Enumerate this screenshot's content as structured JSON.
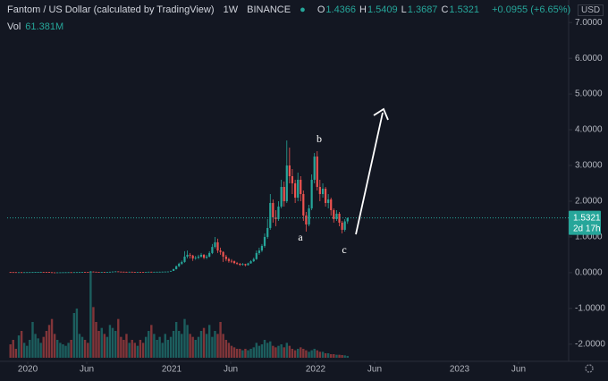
{
  "chart_data": {
    "type": "candlestick",
    "title": "Fantom / US Dollar (calculated by TradingView)",
    "interval": "1W",
    "exchange": "BINANCE",
    "currency": "USD",
    "legend": [
      {
        "label": "O",
        "value": 1.4366
      },
      {
        "label": "H",
        "value": 1.5409
      },
      {
        "label": "L",
        "value": 1.3687
      },
      {
        "label": "C",
        "value": 1.5321
      }
    ],
    "change_label": "+0.0955 (+6.65%)",
    "volume_legend": {
      "label": "Vol",
      "value": 61.381,
      "value_label": "61.381M"
    },
    "last_price": {
      "value": 1.5321,
      "countdown": "2d 17h"
    },
    "annotations": [
      "a",
      "b",
      "c"
    ],
    "up_color": "#26a69a",
    "down_color": "#ef5350",
    "volume_opacity": 0.5,
    "grid": false,
    "xlim": [
      2019.857,
      2023.758
    ],
    "ylim": [
      -2.38,
      7.38
    ],
    "vlim": [
      0,
      3900
    ],
    "xticks": [
      {
        "value": 2020.0,
        "label": "2020"
      },
      {
        "value": 2020.41,
        "label": "Jun"
      },
      {
        "value": 2021.0,
        "label": "2021"
      },
      {
        "value": 2021.41,
        "label": "Jun"
      },
      {
        "value": 2022.0,
        "label": "2022"
      },
      {
        "value": 2022.41,
        "label": "Jun"
      },
      {
        "value": 2023.0,
        "label": "2023"
      },
      {
        "value": 2023.41,
        "label": "Jun"
      }
    ],
    "yticks": [
      {
        "value": 7,
        "label": "7.0000"
      },
      {
        "value": 6,
        "label": "6.0000"
      },
      {
        "value": 5,
        "label": "5.0000"
      },
      {
        "value": 4,
        "label": "4.0000"
      },
      {
        "value": 3,
        "label": "3.0000"
      },
      {
        "value": 2,
        "label": "2.0000"
      },
      {
        "value": 1,
        "label": "1.0000"
      },
      {
        "value": 0,
        "label": "0.0000"
      },
      {
        "value": -1,
        "label": "-1.0000"
      },
      {
        "value": -2,
        "label": "-2.0000"
      }
    ],
    "x": [
      2019.88,
      2019.899,
      2019.918,
      2019.938,
      2019.957,
      2019.976,
      2019.995,
      2020.014,
      2020.034,
      2020.053,
      2020.072,
      2020.091,
      2020.11,
      2020.13,
      2020.149,
      2020.168,
      2020.187,
      2020.206,
      2020.226,
      2020.245,
      2020.264,
      2020.283,
      2020.302,
      2020.322,
      2020.341,
      2020.36,
      2020.379,
      2020.398,
      2020.418,
      2020.437,
      2020.456,
      2020.475,
      2020.494,
      2020.514,
      2020.533,
      2020.552,
      2020.571,
      2020.59,
      2020.61,
      2020.629,
      2020.648,
      2020.667,
      2020.686,
      2020.706,
      2020.725,
      2020.744,
      2020.763,
      2020.782,
      2020.802,
      2020.821,
      2020.84,
      2020.859,
      2020.878,
      2020.898,
      2020.917,
      2020.936,
      2020.955,
      2020.974,
      2020.994,
      2021.013,
      2021.032,
      2021.051,
      2021.07,
      2021.09,
      2021.109,
      2021.128,
      2021.147,
      2021.166,
      2021.186,
      2021.205,
      2021.224,
      2021.243,
      2021.262,
      2021.282,
      2021.301,
      2021.32,
      2021.339,
      2021.358,
      2021.378,
      2021.397,
      2021.416,
      2021.435,
      2021.454,
      2021.474,
      2021.493,
      2021.512,
      2021.531,
      2021.55,
      2021.57,
      2021.589,
      2021.608,
      2021.627,
      2021.646,
      2021.666,
      2021.685,
      2021.704,
      2021.723,
      2021.742,
      2021.762,
      2021.781,
      2021.8,
      2021.819,
      2021.838,
      2021.858,
      2021.877,
      2021.896,
      2021.915,
      2021.934,
      2021.954,
      2021.973,
      2021.992,
      2022.011,
      2022.03,
      2022.05,
      2022.069,
      2022.088,
      2022.107,
      2022.126,
      2022.146,
      2022.165,
      2022.184,
      2022.203,
      2022.222
    ],
    "open": [
      0.016,
      0.015,
      0.014,
      0.013,
      0.013,
      0.012,
      0.013,
      0.014,
      0.015,
      0.016,
      0.018,
      0.02,
      0.022,
      0.02,
      0.018,
      0.012,
      0.008,
      0.007,
      0.009,
      0.01,
      0.011,
      0.012,
      0.013,
      0.012,
      0.014,
      0.015,
      0.016,
      0.018,
      0.017,
      0.016,
      0.03,
      0.025,
      0.022,
      0.02,
      0.021,
      0.019,
      0.02,
      0.025,
      0.03,
      0.035,
      0.028,
      0.026,
      0.024,
      0.023,
      0.025,
      0.022,
      0.02,
      0.021,
      0.02,
      0.019,
      0.022,
      0.025,
      0.023,
      0.024,
      0.025,
      0.026,
      0.028,
      0.03,
      0.032,
      0.05,
      0.1,
      0.18,
      0.25,
      0.3,
      0.45,
      0.5,
      0.48,
      0.4,
      0.42,
      0.45,
      0.5,
      0.42,
      0.45,
      0.55,
      0.72,
      0.85,
      0.62,
      0.58,
      0.45,
      0.38,
      0.33,
      0.32,
      0.27,
      0.25,
      0.22,
      0.24,
      0.21,
      0.26,
      0.32,
      0.38,
      0.55,
      0.62,
      0.75,
      1.0,
      1.25,
      1.95,
      1.55,
      1.5,
      1.85,
      2.4,
      2.0,
      3.0,
      2.7,
      2.5,
      2.1,
      2.6,
      2.2,
      1.6,
      1.35,
      1.8,
      2.6,
      3.25,
      2.4,
      2.2,
      2.35,
      1.95,
      2.05,
      1.75,
      1.5,
      1.65,
      1.4,
      1.2,
      1.4366
    ],
    "high": [
      0.018,
      0.017,
      0.015,
      0.014,
      0.014,
      0.014,
      0.015,
      0.016,
      0.017,
      0.02,
      0.022,
      0.025,
      0.023,
      0.021,
      0.019,
      0.013,
      0.009,
      0.01,
      0.011,
      0.012,
      0.013,
      0.014,
      0.014,
      0.015,
      0.016,
      0.017,
      0.02,
      0.019,
      0.018,
      0.038,
      0.033,
      0.026,
      0.023,
      0.022,
      0.022,
      0.021,
      0.027,
      0.033,
      0.04,
      0.036,
      0.029,
      0.027,
      0.025,
      0.026,
      0.026,
      0.023,
      0.022,
      0.022,
      0.021,
      0.023,
      0.027,
      0.026,
      0.025,
      0.026,
      0.028,
      0.03,
      0.032,
      0.035,
      0.055,
      0.11,
      0.2,
      0.28,
      0.34,
      0.6,
      0.62,
      0.55,
      0.5,
      0.47,
      0.5,
      0.55,
      0.52,
      0.5,
      0.6,
      0.8,
      1.0,
      0.95,
      0.7,
      0.6,
      0.5,
      0.42,
      0.38,
      0.34,
      0.3,
      0.27,
      0.27,
      0.25,
      0.28,
      0.35,
      0.42,
      0.62,
      0.7,
      0.8,
      1.1,
      1.5,
      2.2,
      2.05,
      1.75,
      2.0,
      2.6,
      2.55,
      3.7,
      3.5,
      2.9,
      2.6,
      2.8,
      2.7,
      2.3,
      1.7,
      1.9,
      2.75,
      3.35,
      3.4,
      2.6,
      2.5,
      2.4,
      2.2,
      2.1,
      1.8,
      1.75,
      1.7,
      1.45,
      1.5,
      1.5409
    ],
    "low": [
      0.014,
      0.013,
      0.012,
      0.012,
      0.011,
      0.011,
      0.012,
      0.013,
      0.014,
      0.015,
      0.017,
      0.019,
      0.019,
      0.017,
      0.011,
      0.006,
      0.005,
      0.006,
      0.008,
      0.009,
      0.01,
      0.011,
      0.011,
      0.011,
      0.013,
      0.014,
      0.015,
      0.016,
      0.015,
      0.015,
      0.023,
      0.02,
      0.019,
      0.019,
      0.018,
      0.018,
      0.019,
      0.024,
      0.028,
      0.026,
      0.024,
      0.022,
      0.021,
      0.022,
      0.02,
      0.018,
      0.019,
      0.019,
      0.018,
      0.018,
      0.021,
      0.022,
      0.022,
      0.023,
      0.024,
      0.025,
      0.027,
      0.029,
      0.03,
      0.048,
      0.09,
      0.16,
      0.22,
      0.28,
      0.4,
      0.4,
      0.33,
      0.36,
      0.38,
      0.42,
      0.38,
      0.38,
      0.43,
      0.52,
      0.68,
      0.55,
      0.5,
      0.3,
      0.32,
      0.28,
      0.27,
      0.24,
      0.22,
      0.19,
      0.2,
      0.18,
      0.2,
      0.25,
      0.3,
      0.36,
      0.5,
      0.58,
      0.7,
      0.95,
      1.2,
      1.4,
      1.3,
      1.45,
      1.8,
      1.85,
      1.95,
      2.5,
      2.2,
      1.95,
      2.0,
      2.0,
      1.45,
      1.15,
      1.3,
      1.75,
      2.5,
      2.3,
      2.0,
      2.1,
      1.85,
      1.8,
      1.6,
      1.4,
      1.45,
      1.3,
      1.1,
      1.15,
      1.3687
    ],
    "close": [
      0.015,
      0.014,
      0.013,
      0.013,
      0.012,
      0.013,
      0.014,
      0.015,
      0.016,
      0.018,
      0.02,
      0.022,
      0.02,
      0.018,
      0.012,
      0.008,
      0.007,
      0.009,
      0.01,
      0.011,
      0.012,
      0.013,
      0.012,
      0.014,
      0.015,
      0.016,
      0.018,
      0.017,
      0.016,
      0.03,
      0.025,
      0.022,
      0.02,
      0.021,
      0.019,
      0.02,
      0.025,
      0.03,
      0.035,
      0.028,
      0.026,
      0.024,
      0.023,
      0.025,
      0.022,
      0.02,
      0.021,
      0.02,
      0.019,
      0.022,
      0.025,
      0.023,
      0.024,
      0.025,
      0.026,
      0.028,
      0.03,
      0.032,
      0.05,
      0.1,
      0.18,
      0.25,
      0.3,
      0.45,
      0.5,
      0.48,
      0.4,
      0.42,
      0.45,
      0.5,
      0.42,
      0.45,
      0.55,
      0.72,
      0.85,
      0.62,
      0.58,
      0.45,
      0.38,
      0.33,
      0.32,
      0.27,
      0.25,
      0.22,
      0.24,
      0.21,
      0.26,
      0.32,
      0.38,
      0.55,
      0.62,
      0.75,
      1.0,
      1.25,
      1.95,
      1.55,
      1.5,
      1.85,
      2.4,
      2.0,
      3.0,
      2.7,
      2.5,
      2.1,
      2.6,
      2.2,
      1.6,
      1.35,
      1.8,
      2.6,
      3.25,
      2.4,
      2.2,
      2.35,
      1.95,
      2.05,
      1.75,
      1.5,
      1.65,
      1.4,
      1.2,
      1.4366,
      1.5321
    ],
    "volume": [
      450,
      600,
      300,
      750,
      900,
      500,
      400,
      600,
      1200,
      800,
      650,
      500,
      700,
      900,
      1100,
      1300,
      800,
      600,
      500,
      450,
      400,
      500,
      600,
      1500,
      1650,
      800,
      700,
      600,
      500,
      2900,
      1700,
      1200,
      900,
      1000,
      800,
      700,
      1100,
      1000,
      900,
      1300,
      700,
      600,
      800,
      500,
      600,
      500,
      400,
      600,
      500,
      700,
      900,
      1100,
      800,
      600,
      700,
      500,
      800,
      600,
      700,
      900,
      1200,
      900,
      800,
      1300,
      1100,
      800,
      700,
      600,
      700,
      900,
      1000,
      800,
      1100,
      700,
      900,
      800,
      1200,
      800,
      600,
      500,
      400,
      350,
      300,
      300,
      250,
      300,
      250,
      300,
      350,
      500,
      400,
      450,
      600,
      500,
      550,
      400,
      350,
      400,
      450,
      350,
      500,
      400,
      300,
      250,
      300,
      350,
      300,
      250,
      200,
      250,
      300,
      250,
      200,
      200,
      150,
      150,
      120,
      120,
      100,
      100,
      90,
      80,
      61.381
    ]
  }
}
